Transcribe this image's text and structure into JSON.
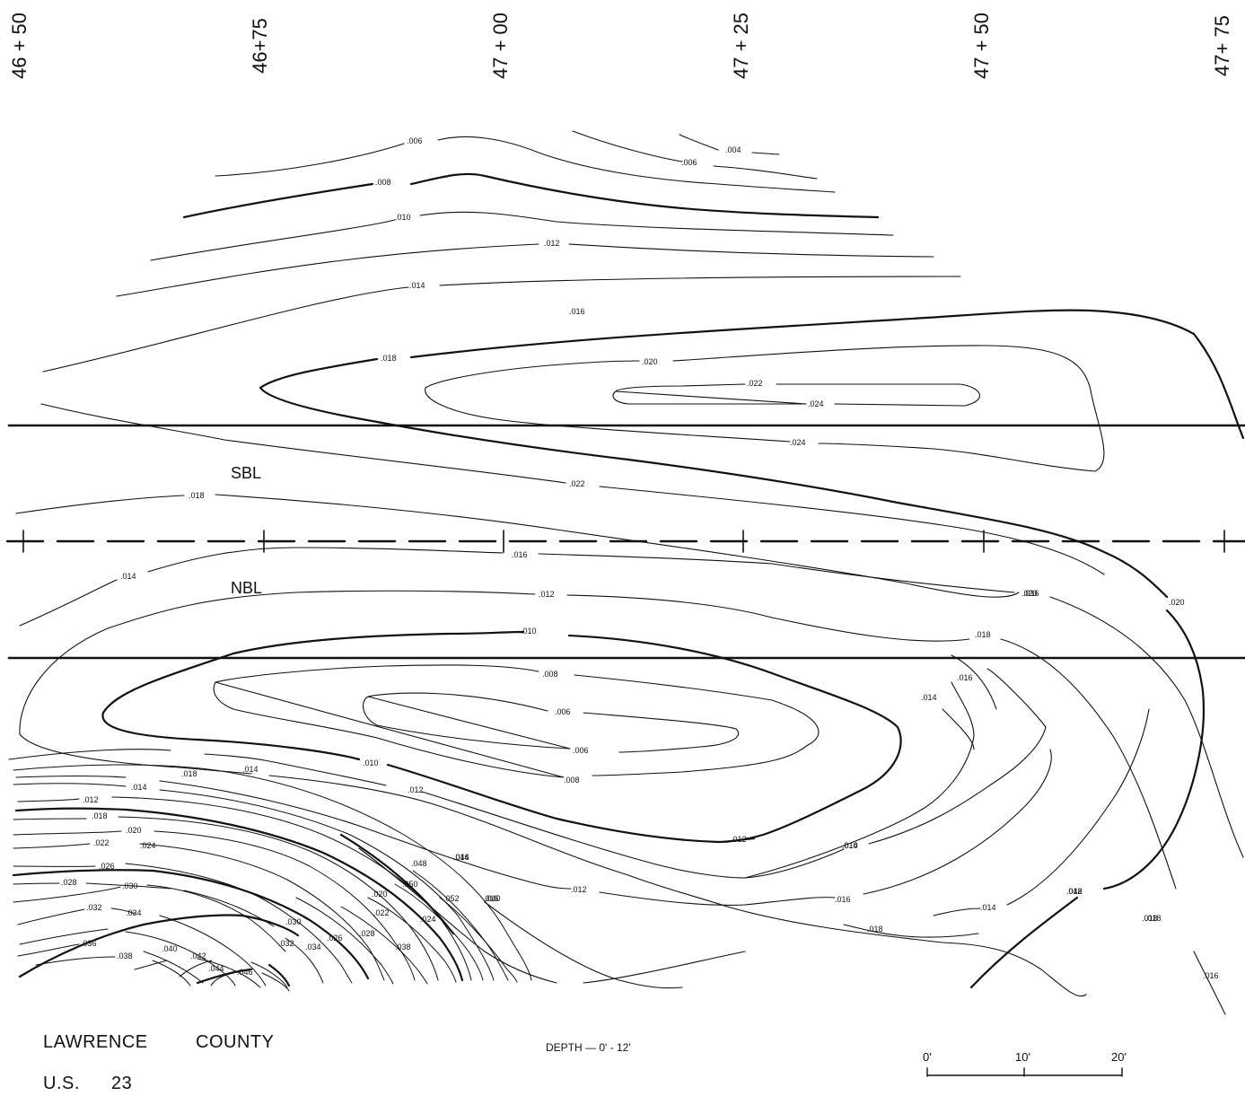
{
  "stations": [
    "46 + 50",
    "46+75",
    "47 + 00",
    "47 + 25",
    "47 + 50",
    "47+ 75"
  ],
  "lanes": {
    "south": "SBL",
    "north": "NBL"
  },
  "footer": {
    "county": "LAWRENCE",
    "county_word": "COUNTY",
    "route_prefix": "U.S.",
    "route_number": "23",
    "depth": "DEPTH — 0' - 12'"
  },
  "scale": {
    "labels": [
      "0'",
      "10'",
      "20'"
    ]
  },
  "contour_labels": [
    ".004",
    ".006",
    ".006",
    ".008",
    ".010",
    ".012",
    ".014",
    ".016",
    ".018",
    ".020",
    ".022",
    ".024",
    ".024",
    ".022",
    ".018",
    ".016",
    ".014",
    ".012",
    ".010",
    ".008",
    ".006",
    ".006",
    ".008",
    ".010",
    ".012",
    ".014",
    ".016",
    ".018",
    ".020",
    ".018",
    ".016",
    ".014",
    ".012",
    ".010",
    ".012",
    ".014",
    ".016",
    ".018",
    ".020",
    ".018",
    ".016",
    ".016",
    ".014",
    ".018",
    ".016",
    ".014",
    ".012",
    ".018",
    ".020",
    ".022",
    ".024",
    ".026",
    ".028",
    ".030",
    ".032",
    ".034",
    ".036",
    ".038",
    ".040",
    ".042",
    ".044",
    ".046",
    ".048",
    ".050",
    ".052",
    ".020",
    ".024",
    ".022",
    ".028",
    ".026",
    ".030",
    ".032",
    ".034",
    ".038",
    ".040",
    ".044",
    ".042",
    ".018",
    ".016",
    ".020",
    ".018"
  ],
  "colors": {
    "ink": "#111111",
    "background": "#ffffff"
  }
}
